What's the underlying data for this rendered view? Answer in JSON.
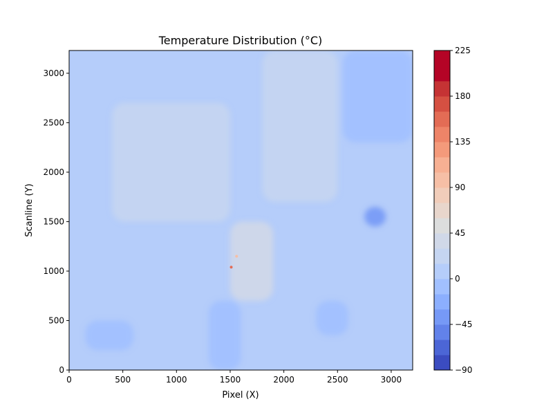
{
  "chart_data": {
    "type": "heatmap",
    "title": "Temperature Distribution (°C)",
    "xlabel": "Pixel (X)",
    "ylabel": "Scanline (Y)",
    "xlim": [
      0,
      3200
    ],
    "ylim": [
      0,
      3230
    ],
    "x_ticks": [
      0,
      500,
      1000,
      1500,
      2000,
      2500,
      3000
    ],
    "y_ticks": [
      0,
      500,
      1000,
      1500,
      2000,
      2500,
      3000
    ],
    "x_tick_labels": [
      "0",
      "500",
      "1000",
      "1500",
      "2000",
      "2500",
      "3000"
    ],
    "y_tick_labels": [
      "0",
      "500",
      "1000",
      "1500",
      "2000",
      "2500",
      "3000"
    ],
    "grid": false,
    "colormap": "coolwarm",
    "colorbar": {
      "position": "right",
      "range": [
        -90,
        225
      ],
      "ticks": [
        -90,
        -45,
        0,
        45,
        90,
        135,
        180,
        225
      ],
      "tick_labels": [
        "−90",
        "−45",
        "0",
        "45",
        "90",
        "135",
        "180",
        "225"
      ],
      "levels": [
        -90,
        -75,
        -60,
        -45,
        -30,
        -15,
        0,
        15,
        30,
        45,
        60,
        75,
        90,
        105,
        120,
        135,
        150,
        165,
        180,
        195,
        210,
        225
      ],
      "colors": [
        "#3b4cc0",
        "#4c66d6",
        "#6282ea",
        "#7699f6",
        "#8caffe",
        "#a1c0ff",
        "#b5cdfa",
        "#c5d5f1",
        "#d0d8e8",
        "#dcdddd",
        "#e8d6cc",
        "#f1cdba",
        "#f6bfa6",
        "#f7b093",
        "#f49a7b",
        "#ee8468",
        "#e36c55",
        "#d55042",
        "#c53334",
        "#b40426",
        "#b40426"
      ]
    },
    "background_value_approx": 5,
    "regions": [
      {
        "value": 20,
        "x": [
          1800,
          2500
        ],
        "y": [
          1700,
          3230
        ]
      },
      {
        "value": 20,
        "x": [
          400,
          1500
        ],
        "y": [
          1500,
          2700
        ]
      },
      {
        "value": -10,
        "x": [
          2550,
          3200
        ],
        "y": [
          2300,
          3230
        ]
      },
      {
        "value": -35,
        "x": [
          2750,
          2950
        ],
        "y": [
          1450,
          1650
        ]
      },
      {
        "value": -10,
        "x": [
          1300,
          1600
        ],
        "y": [
          0,
          700
        ]
      },
      {
        "value": -10,
        "x": [
          2300,
          2600
        ],
        "y": [
          350,
          700
        ]
      },
      {
        "value": -10,
        "x": [
          150,
          600
        ],
        "y": [
          200,
          500
        ]
      },
      {
        "value": 30,
        "x": [
          1500,
          1900
        ],
        "y": [
          700,
          1500
        ]
      }
    ],
    "hotspots": [
      {
        "x": 1510,
        "y": 1040,
        "value": 150
      },
      {
        "x": 1560,
        "y": 1150,
        "value": 90
      }
    ]
  }
}
